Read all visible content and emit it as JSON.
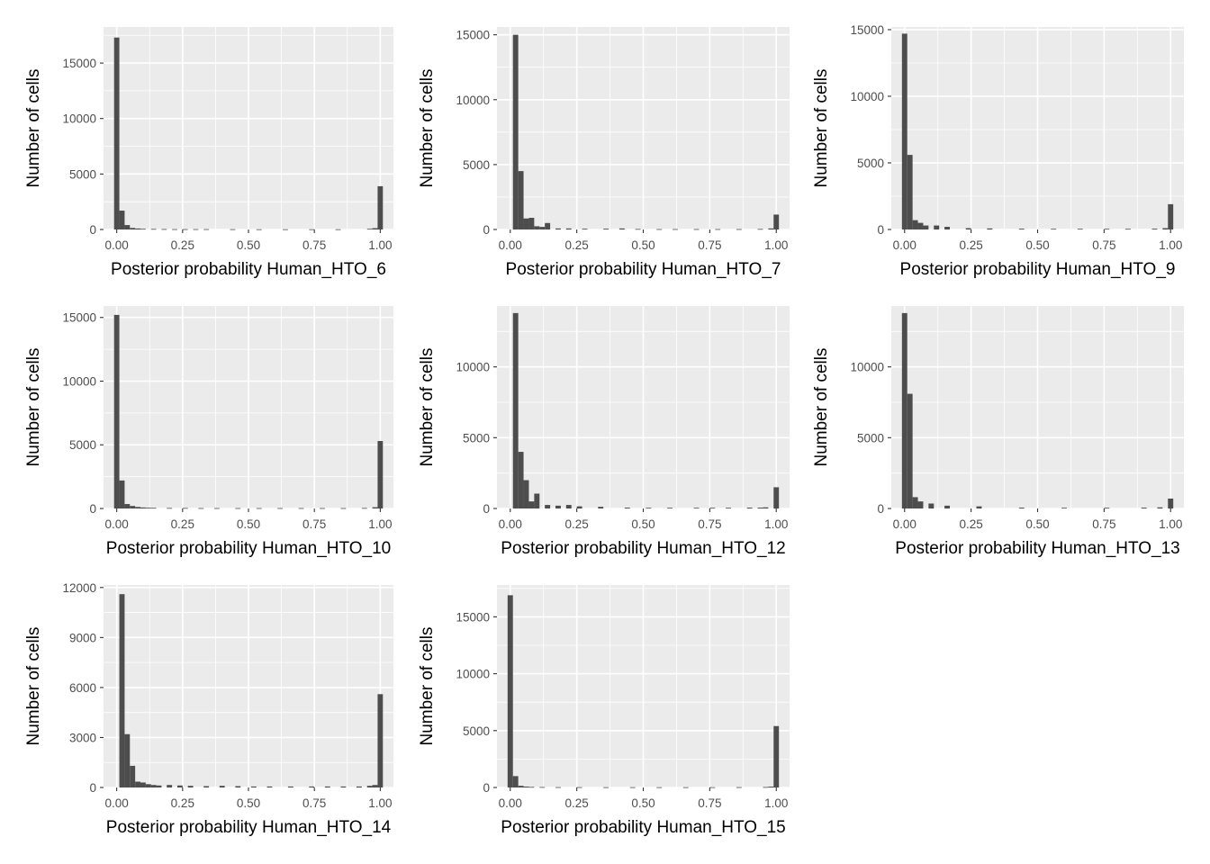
{
  "colors": {
    "panel_background": "#EBEBEB",
    "grid": "#FFFFFF",
    "bar": "#4D4D4D",
    "tick": "#333333",
    "page": "#FFFFFF"
  },
  "chart_data": [
    {
      "type": "bar",
      "subtype": "histogram",
      "title": "",
      "xlabel": "Posterior probability Human_HTO_6",
      "ylabel": "Number of cells",
      "xlim": [
        -0.05,
        1.05
      ],
      "ylim": [
        0,
        18250
      ],
      "x_ticks": [
        0,
        0.25,
        0.5,
        0.75,
        1
      ],
      "x_tick_labels": [
        "0.00",
        "0.25",
        "0.50",
        "0.75",
        "1.00"
      ],
      "y_ticks": [
        0,
        5000,
        10000,
        15000
      ],
      "y_tick_labels": [
        "0",
        "5000",
        "10000",
        "15000"
      ],
      "bin_width": 0.02,
      "bins": [
        {
          "x": 0.0,
          "count": 17300
        },
        {
          "x": 0.02,
          "count": 1700
        },
        {
          "x": 0.04,
          "count": 400
        },
        {
          "x": 0.06,
          "count": 140
        },
        {
          "x": 0.08,
          "count": 90
        },
        {
          "x": 0.1,
          "count": 60
        },
        {
          "x": 0.14,
          "count": 50
        },
        {
          "x": 0.18,
          "count": 40
        },
        {
          "x": 0.22,
          "count": 30
        },
        {
          "x": 0.26,
          "count": 30
        },
        {
          "x": 0.3,
          "count": 30
        },
        {
          "x": 0.34,
          "count": 30
        },
        {
          "x": 0.44,
          "count": 25
        },
        {
          "x": 0.54,
          "count": 20
        },
        {
          "x": 0.64,
          "count": 20
        },
        {
          "x": 0.74,
          "count": 20
        },
        {
          "x": 0.84,
          "count": 20
        },
        {
          "x": 0.96,
          "count": 60
        },
        {
          "x": 0.98,
          "count": 120
        },
        {
          "x": 1.0,
          "count": 3900
        }
      ]
    },
    {
      "type": "bar",
      "subtype": "histogram",
      "title": "",
      "xlabel": "Posterior probability Human_HTO_7",
      "ylabel": "Number of cells",
      "xlim": [
        -0.05,
        1.05
      ],
      "ylim": [
        0,
        15600
      ],
      "x_ticks": [
        0,
        0.25,
        0.5,
        0.75,
        1
      ],
      "x_tick_labels": [
        "0.00",
        "0.25",
        "0.50",
        "0.75",
        "1.00"
      ],
      "y_ticks": [
        0,
        5000,
        10000,
        15000
      ],
      "y_tick_labels": [
        "0",
        "5000",
        "10000",
        "15000"
      ],
      "bin_width": 0.02,
      "bins": [
        {
          "x": 0.02,
          "count": 15000
        },
        {
          "x": 0.04,
          "count": 4500
        },
        {
          "x": 0.06,
          "count": 850
        },
        {
          "x": 0.08,
          "count": 900
        },
        {
          "x": 0.1,
          "count": 250
        },
        {
          "x": 0.12,
          "count": 200
        },
        {
          "x": 0.14,
          "count": 500
        },
        {
          "x": 0.18,
          "count": 80
        },
        {
          "x": 0.22,
          "count": 80
        },
        {
          "x": 0.28,
          "count": 60
        },
        {
          "x": 0.36,
          "count": 60
        },
        {
          "x": 0.42,
          "count": 80
        },
        {
          "x": 0.48,
          "count": 40
        },
        {
          "x": 0.56,
          "count": 30
        },
        {
          "x": 0.62,
          "count": 30
        },
        {
          "x": 0.7,
          "count": 30
        },
        {
          "x": 0.78,
          "count": 30
        },
        {
          "x": 0.86,
          "count": 30
        },
        {
          "x": 0.94,
          "count": 40
        },
        {
          "x": 0.98,
          "count": 80
        },
        {
          "x": 1.0,
          "count": 1150
        }
      ]
    },
    {
      "type": "bar",
      "subtype": "histogram",
      "title": "",
      "xlabel": "Posterior probability Human_HTO_9",
      "ylabel": "Number of cells",
      "xlim": [
        -0.05,
        1.05
      ],
      "ylim": [
        0,
        15200
      ],
      "x_ticks": [
        0,
        0.25,
        0.5,
        0.75,
        1
      ],
      "x_tick_labels": [
        "0.00",
        "0.25",
        "0.50",
        "0.75",
        "1.00"
      ],
      "y_ticks": [
        0,
        5000,
        10000,
        15000
      ],
      "y_tick_labels": [
        "0",
        "5000",
        "10000",
        "15000"
      ],
      "bin_width": 0.02,
      "bins": [
        {
          "x": 0.0,
          "count": 14700
        },
        {
          "x": 0.02,
          "count": 5600
        },
        {
          "x": 0.04,
          "count": 700
        },
        {
          "x": 0.06,
          "count": 500
        },
        {
          "x": 0.08,
          "count": 300
        },
        {
          "x": 0.12,
          "count": 300
        },
        {
          "x": 0.16,
          "count": 200
        },
        {
          "x": 0.24,
          "count": 100
        },
        {
          "x": 0.32,
          "count": 80
        },
        {
          "x": 0.44,
          "count": 60
        },
        {
          "x": 0.56,
          "count": 50
        },
        {
          "x": 0.66,
          "count": 50
        },
        {
          "x": 0.76,
          "count": 50
        },
        {
          "x": 0.84,
          "count": 50
        },
        {
          "x": 0.94,
          "count": 60
        },
        {
          "x": 0.98,
          "count": 100
        },
        {
          "x": 1.0,
          "count": 1900
        }
      ]
    },
    {
      "type": "bar",
      "subtype": "histogram",
      "title": "",
      "xlabel": "Posterior probability Human_HTO_10",
      "ylabel": "Number of cells",
      "xlim": [
        -0.05,
        1.05
      ],
      "ylim": [
        0,
        15900
      ],
      "x_ticks": [
        0,
        0.25,
        0.5,
        0.75,
        1
      ],
      "x_tick_labels": [
        "0.00",
        "0.25",
        "0.50",
        "0.75",
        "1.00"
      ],
      "y_ticks": [
        0,
        5000,
        10000,
        15000
      ],
      "y_tick_labels": [
        "0",
        "5000",
        "10000",
        "15000"
      ],
      "bin_width": 0.02,
      "bins": [
        {
          "x": 0.0,
          "count": 15200
        },
        {
          "x": 0.02,
          "count": 2200
        },
        {
          "x": 0.04,
          "count": 350
        },
        {
          "x": 0.06,
          "count": 200
        },
        {
          "x": 0.08,
          "count": 120
        },
        {
          "x": 0.1,
          "count": 80
        },
        {
          "x": 0.12,
          "count": 60
        },
        {
          "x": 0.14,
          "count": 50
        },
        {
          "x": 0.2,
          "count": 40
        },
        {
          "x": 0.26,
          "count": 40
        },
        {
          "x": 0.32,
          "count": 30
        },
        {
          "x": 0.38,
          "count": 30
        },
        {
          "x": 0.46,
          "count": 30
        },
        {
          "x": 0.54,
          "count": 30
        },
        {
          "x": 0.62,
          "count": 30
        },
        {
          "x": 0.7,
          "count": 30
        },
        {
          "x": 0.78,
          "count": 30
        },
        {
          "x": 0.86,
          "count": 30
        },
        {
          "x": 0.94,
          "count": 40
        },
        {
          "x": 0.98,
          "count": 100
        },
        {
          "x": 1.0,
          "count": 5300
        }
      ]
    },
    {
      "type": "bar",
      "subtype": "histogram",
      "title": "",
      "xlabel": "Posterior probability Human_HTO_12",
      "ylabel": "Number of cells",
      "xlim": [
        -0.05,
        1.05
      ],
      "ylim": [
        0,
        14300
      ],
      "x_ticks": [
        0,
        0.25,
        0.5,
        0.75,
        1
      ],
      "x_tick_labels": [
        "0.00",
        "0.25",
        "0.50",
        "0.75",
        "1.00"
      ],
      "y_ticks": [
        0,
        5000,
        10000
      ],
      "y_tick_labels": [
        "0",
        "5000",
        "10000"
      ],
      "bin_width": 0.02,
      "bins": [
        {
          "x": 0.02,
          "count": 13800
        },
        {
          "x": 0.04,
          "count": 4000
        },
        {
          "x": 0.06,
          "count": 2000
        },
        {
          "x": 0.08,
          "count": 500
        },
        {
          "x": 0.1,
          "count": 1050
        },
        {
          "x": 0.14,
          "count": 250
        },
        {
          "x": 0.18,
          "count": 200
        },
        {
          "x": 0.22,
          "count": 250
        },
        {
          "x": 0.26,
          "count": 150
        },
        {
          "x": 0.34,
          "count": 120
        },
        {
          "x": 0.44,
          "count": 60
        },
        {
          "x": 0.52,
          "count": 50
        },
        {
          "x": 0.6,
          "count": 50
        },
        {
          "x": 0.7,
          "count": 50
        },
        {
          "x": 0.76,
          "count": 50
        },
        {
          "x": 0.82,
          "count": 50
        },
        {
          "x": 0.9,
          "count": 60
        },
        {
          "x": 0.94,
          "count": 60
        },
        {
          "x": 0.96,
          "count": 80
        },
        {
          "x": 1.0,
          "count": 1500
        }
      ]
    },
    {
      "type": "bar",
      "subtype": "histogram",
      "title": "",
      "xlabel": "Posterior probability Human_HTO_13",
      "ylabel": "Number of cells",
      "xlim": [
        -0.05,
        1.05
      ],
      "ylim": [
        0,
        14300
      ],
      "x_ticks": [
        0,
        0.25,
        0.5,
        0.75,
        1
      ],
      "x_tick_labels": [
        "0.00",
        "0.25",
        "0.50",
        "0.75",
        "1.00"
      ],
      "y_ticks": [
        0,
        5000,
        10000
      ],
      "y_tick_labels": [
        "0",
        "5000",
        "10000"
      ],
      "bin_width": 0.02,
      "bins": [
        {
          "x": 0.0,
          "count": 13800
        },
        {
          "x": 0.02,
          "count": 8100
        },
        {
          "x": 0.04,
          "count": 800
        },
        {
          "x": 0.06,
          "count": 500
        },
        {
          "x": 0.1,
          "count": 350
        },
        {
          "x": 0.16,
          "count": 200
        },
        {
          "x": 0.28,
          "count": 150
        },
        {
          "x": 0.44,
          "count": 60
        },
        {
          "x": 0.6,
          "count": 50
        },
        {
          "x": 0.76,
          "count": 50
        },
        {
          "x": 0.9,
          "count": 60
        },
        {
          "x": 0.96,
          "count": 80
        },
        {
          "x": 1.0,
          "count": 700
        }
      ]
    },
    {
      "type": "bar",
      "subtype": "histogram",
      "title": "",
      "xlabel": "Posterior probability Human_HTO_14",
      "ylabel": "Number of cells",
      "xlim": [
        -0.05,
        1.05
      ],
      "ylim": [
        0,
        12150
      ],
      "x_ticks": [
        0,
        0.25,
        0.5,
        0.75,
        1
      ],
      "x_tick_labels": [
        "0.00",
        "0.25",
        "0.50",
        "0.75",
        "1.00"
      ],
      "y_ticks": [
        0,
        3000,
        6000,
        9000,
        12000
      ],
      "y_tick_labels": [
        "0",
        "3000",
        "6000",
        "9000",
        "12000"
      ],
      "bin_width": 0.02,
      "bins": [
        {
          "x": 0.02,
          "count": 11600
        },
        {
          "x": 0.04,
          "count": 3200
        },
        {
          "x": 0.06,
          "count": 1300
        },
        {
          "x": 0.08,
          "count": 350
        },
        {
          "x": 0.1,
          "count": 300
        },
        {
          "x": 0.12,
          "count": 200
        },
        {
          "x": 0.14,
          "count": 150
        },
        {
          "x": 0.16,
          "count": 120
        },
        {
          "x": 0.2,
          "count": 150
        },
        {
          "x": 0.24,
          "count": 120
        },
        {
          "x": 0.28,
          "count": 100
        },
        {
          "x": 0.34,
          "count": 80
        },
        {
          "x": 0.4,
          "count": 100
        },
        {
          "x": 0.46,
          "count": 80
        },
        {
          "x": 0.52,
          "count": 60
        },
        {
          "x": 0.58,
          "count": 60
        },
        {
          "x": 0.66,
          "count": 60
        },
        {
          "x": 0.74,
          "count": 60
        },
        {
          "x": 0.8,
          "count": 60
        },
        {
          "x": 0.86,
          "count": 60
        },
        {
          "x": 0.92,
          "count": 60
        },
        {
          "x": 0.96,
          "count": 100
        },
        {
          "x": 0.98,
          "count": 150
        },
        {
          "x": 1.0,
          "count": 5600
        }
      ]
    },
    {
      "type": "bar",
      "subtype": "histogram",
      "title": "",
      "xlabel": "Posterior probability Human_HTO_15",
      "ylabel": "Number of cells",
      "xlim": [
        -0.05,
        1.05
      ],
      "ylim": [
        0,
        17800
      ],
      "x_ticks": [
        0,
        0.25,
        0.5,
        0.75,
        1
      ],
      "x_tick_labels": [
        "0.00",
        "0.25",
        "0.50",
        "0.75",
        "1.00"
      ],
      "y_ticks": [
        0,
        5000,
        10000,
        15000
      ],
      "y_tick_labels": [
        "0",
        "5000",
        "10000",
        "15000"
      ],
      "bin_width": 0.02,
      "bins": [
        {
          "x": 0.0,
          "count": 16900
        },
        {
          "x": 0.02,
          "count": 1000
        },
        {
          "x": 0.04,
          "count": 150
        },
        {
          "x": 0.06,
          "count": 80
        },
        {
          "x": 0.08,
          "count": 50
        },
        {
          "x": 0.12,
          "count": 40
        },
        {
          "x": 0.18,
          "count": 30
        },
        {
          "x": 0.26,
          "count": 30
        },
        {
          "x": 0.36,
          "count": 25
        },
        {
          "x": 0.46,
          "count": 25
        },
        {
          "x": 0.56,
          "count": 25
        },
        {
          "x": 0.66,
          "count": 25
        },
        {
          "x": 0.76,
          "count": 25
        },
        {
          "x": 0.86,
          "count": 30
        },
        {
          "x": 0.96,
          "count": 40
        },
        {
          "x": 0.98,
          "count": 80
        },
        {
          "x": 1.0,
          "count": 5400
        }
      ]
    }
  ]
}
